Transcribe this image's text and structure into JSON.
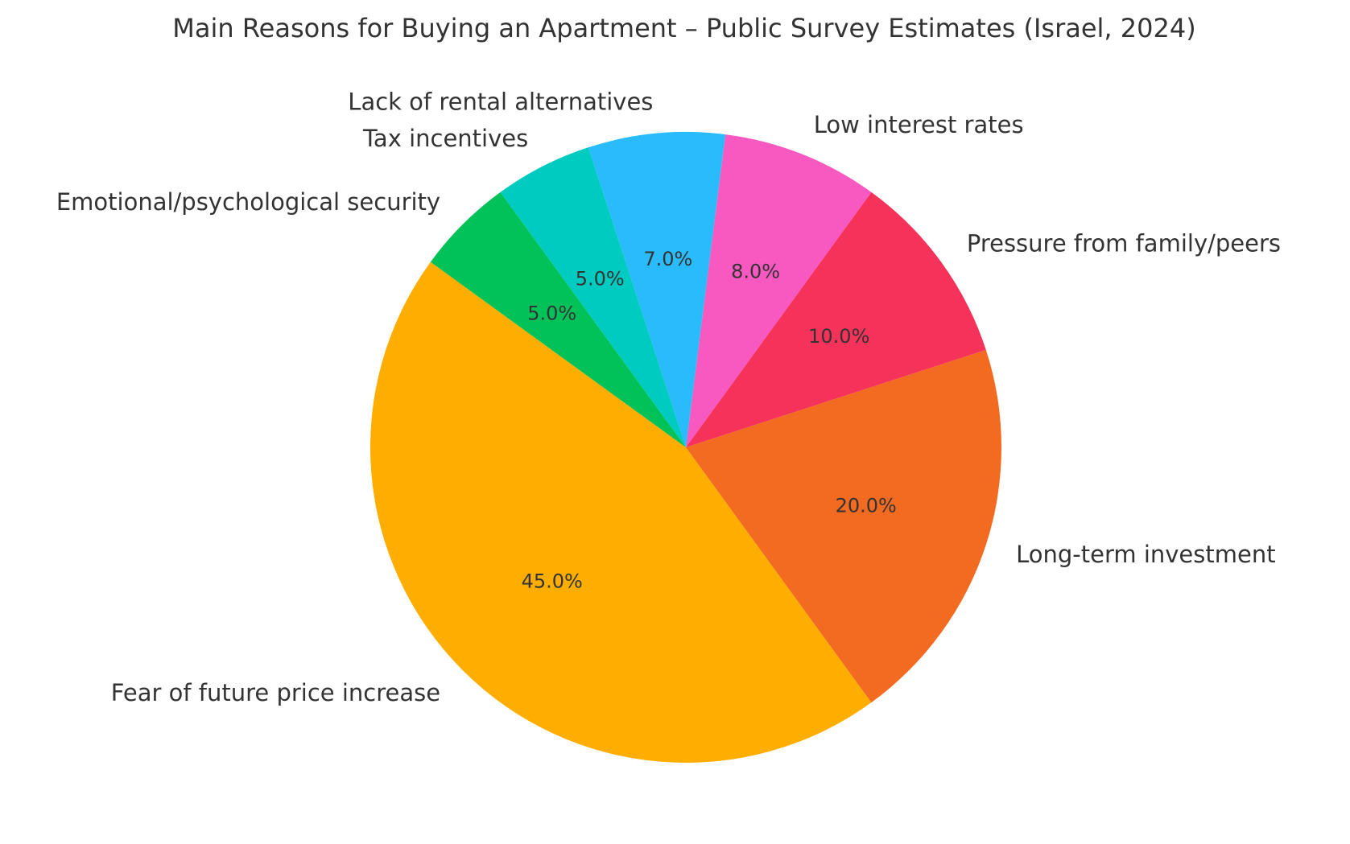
{
  "chart_data": {
    "type": "pie",
    "title": "Main Reasons for Buying an Apartment – Public Survey Estimates (Israel, 2024)",
    "start_angle_deg": 144,
    "direction": "counterclockwise",
    "slices": [
      {
        "label": "Fear of future price increase",
        "value": 45,
        "pct_text": "45.0%",
        "color": "#FFAE00"
      },
      {
        "label": "Long-term investment",
        "value": 20,
        "pct_text": "20.0%",
        "color": "#F36A21"
      },
      {
        "label": "Pressure from family/peers",
        "value": 10,
        "pct_text": "10.0%",
        "color": "#F53259"
      },
      {
        "label": "Low interest rates",
        "value": 8,
        "pct_text": "8.0%",
        "color": "#F759C0"
      },
      {
        "label": "Lack of rental alternatives",
        "value": 7,
        "pct_text": "7.0%",
        "color": "#29BBFB"
      },
      {
        "label": "Tax incentives",
        "value": 5,
        "pct_text": "5.0%",
        "color": "#00CBC1"
      },
      {
        "label": "Emotional/psychological security",
        "value": 5,
        "pct_text": "5.0%",
        "color": "#00C259"
      }
    ]
  }
}
